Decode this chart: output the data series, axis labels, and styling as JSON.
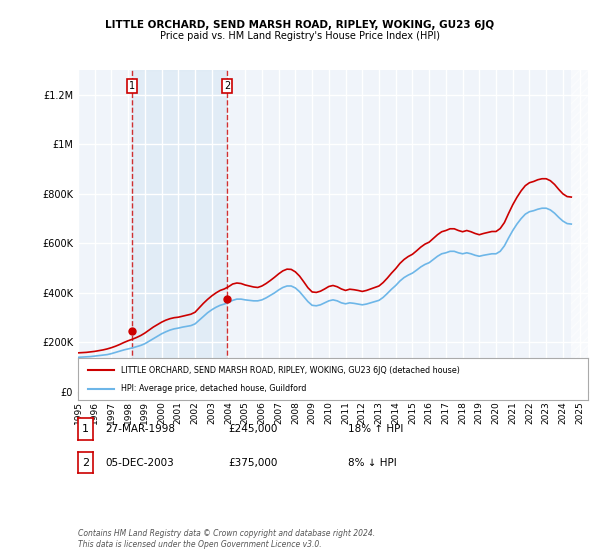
{
  "title": "LITTLE ORCHARD, SEND MARSH ROAD, RIPLEY, WOKING, GU23 6JQ",
  "subtitle": "Price paid vs. HM Land Registry's House Price Index (HPI)",
  "xlim": [
    1995,
    2025.5
  ],
  "ylim": [
    0,
    1300000
  ],
  "yticks": [
    0,
    200000,
    400000,
    600000,
    800000,
    1000000,
    1200000
  ],
  "ytick_labels": [
    "£0",
    "£200K",
    "£400K",
    "£600K",
    "£800K",
    "£1M",
    "£1.2M"
  ],
  "xtick_years": [
    1995,
    1996,
    1997,
    1998,
    1999,
    2000,
    2001,
    2002,
    2003,
    2004,
    2005,
    2006,
    2007,
    2008,
    2009,
    2010,
    2011,
    2012,
    2013,
    2014,
    2015,
    2016,
    2017,
    2018,
    2019,
    2020,
    2021,
    2022,
    2023,
    2024,
    2025
  ],
  "background_color": "#ffffff",
  "plot_bg_color": "#f0f4fa",
  "grid_color": "#ffffff",
  "sale1_x": 1998.24,
  "sale1_y": 245000,
  "sale2_x": 2003.92,
  "sale2_y": 375000,
  "sale_color": "#cc0000",
  "hpi_color": "#6db6e8",
  "legend_house_label": "LITTLE ORCHARD, SEND MARSH ROAD, RIPLEY, WOKING, GU23 6JQ (detached house)",
  "legend_hpi_label": "HPI: Average price, detached house, Guildford",
  "table_rows": [
    {
      "num": "1",
      "date": "27-MAR-1998",
      "price": "£245,000",
      "hpi": "18% ↑ HPI"
    },
    {
      "num": "2",
      "date": "05-DEC-2003",
      "price": "£375,000",
      "hpi": "8% ↓ HPI"
    }
  ],
  "footer": "Contains HM Land Registry data © Crown copyright and database right 2024.\nThis data is licensed under the Open Government Licence v3.0.",
  "hpi_data_x": [
    1995.0,
    1995.25,
    1995.5,
    1995.75,
    1996.0,
    1996.25,
    1996.5,
    1996.75,
    1997.0,
    1997.25,
    1997.5,
    1997.75,
    1998.0,
    1998.25,
    1998.5,
    1998.75,
    1999.0,
    1999.25,
    1999.5,
    1999.75,
    2000.0,
    2000.25,
    2000.5,
    2000.75,
    2001.0,
    2001.25,
    2001.5,
    2001.75,
    2002.0,
    2002.25,
    2002.5,
    2002.75,
    2003.0,
    2003.25,
    2003.5,
    2003.75,
    2004.0,
    2004.25,
    2004.5,
    2004.75,
    2005.0,
    2005.25,
    2005.5,
    2005.75,
    2006.0,
    2006.25,
    2006.5,
    2006.75,
    2007.0,
    2007.25,
    2007.5,
    2007.75,
    2008.0,
    2008.25,
    2008.5,
    2008.75,
    2009.0,
    2009.25,
    2009.5,
    2009.75,
    2010.0,
    2010.25,
    2010.5,
    2010.75,
    2011.0,
    2011.25,
    2011.5,
    2011.75,
    2012.0,
    2012.25,
    2012.5,
    2012.75,
    2013.0,
    2013.25,
    2013.5,
    2013.75,
    2014.0,
    2014.25,
    2014.5,
    2014.75,
    2015.0,
    2015.25,
    2015.5,
    2015.75,
    2016.0,
    2016.25,
    2016.5,
    2016.75,
    2017.0,
    2017.25,
    2017.5,
    2017.75,
    2018.0,
    2018.25,
    2018.5,
    2018.75,
    2019.0,
    2019.25,
    2019.5,
    2019.75,
    2020.0,
    2020.25,
    2020.5,
    2020.75,
    2021.0,
    2021.25,
    2021.5,
    2021.75,
    2022.0,
    2022.25,
    2022.5,
    2022.75,
    2023.0,
    2023.25,
    2023.5,
    2023.75,
    2024.0,
    2024.25,
    2024.5
  ],
  "hpi_data_y": [
    140000,
    141000,
    142000,
    143000,
    145000,
    147000,
    149000,
    151000,
    155000,
    160000,
    165000,
    170000,
    174000,
    178000,
    183000,
    188000,
    195000,
    205000,
    215000,
    225000,
    235000,
    243000,
    250000,
    255000,
    258000,
    262000,
    265000,
    268000,
    275000,
    290000,
    305000,
    320000,
    332000,
    342000,
    350000,
    355000,
    362000,
    370000,
    375000,
    375000,
    372000,
    370000,
    368000,
    368000,
    372000,
    380000,
    390000,
    400000,
    412000,
    422000,
    428000,
    428000,
    420000,
    405000,
    385000,
    365000,
    350000,
    348000,
    352000,
    360000,
    368000,
    372000,
    368000,
    360000,
    356000,
    360000,
    358000,
    355000,
    352000,
    355000,
    360000,
    365000,
    370000,
    382000,
    398000,
    415000,
    430000,
    448000,
    462000,
    472000,
    480000,
    492000,
    505000,
    515000,
    522000,
    535000,
    548000,
    558000,
    562000,
    568000,
    568000,
    562000,
    558000,
    562000,
    558000,
    552000,
    548000,
    552000,
    555000,
    558000,
    558000,
    568000,
    590000,
    622000,
    652000,
    678000,
    700000,
    718000,
    728000,
    732000,
    738000,
    742000,
    742000,
    735000,
    722000,
    705000,
    690000,
    680000,
    678000
  ],
  "house_data_x": [
    1995.0,
    1995.25,
    1995.5,
    1995.75,
    1996.0,
    1996.25,
    1996.5,
    1996.75,
    1997.0,
    1997.25,
    1997.5,
    1997.75,
    1998.0,
    1998.25,
    1998.5,
    1998.75,
    1999.0,
    1999.25,
    1999.5,
    1999.75,
    2000.0,
    2000.25,
    2000.5,
    2000.75,
    2001.0,
    2001.25,
    2001.5,
    2001.75,
    2002.0,
    2002.25,
    2002.5,
    2002.75,
    2003.0,
    2003.25,
    2003.5,
    2003.75,
    2004.0,
    2004.25,
    2004.5,
    2004.75,
    2005.0,
    2005.25,
    2005.5,
    2005.75,
    2006.0,
    2006.25,
    2006.5,
    2006.75,
    2007.0,
    2007.25,
    2007.5,
    2007.75,
    2008.0,
    2008.25,
    2008.5,
    2008.75,
    2009.0,
    2009.25,
    2009.5,
    2009.75,
    2010.0,
    2010.25,
    2010.5,
    2010.75,
    2011.0,
    2011.25,
    2011.5,
    2011.75,
    2012.0,
    2012.25,
    2012.5,
    2012.75,
    2013.0,
    2013.25,
    2013.5,
    2013.75,
    2014.0,
    2014.25,
    2014.5,
    2014.75,
    2015.0,
    2015.25,
    2015.5,
    2015.75,
    2016.0,
    2016.25,
    2016.5,
    2016.75,
    2017.0,
    2017.25,
    2017.5,
    2017.75,
    2018.0,
    2018.25,
    2018.5,
    2018.75,
    2019.0,
    2019.25,
    2019.5,
    2019.75,
    2020.0,
    2020.25,
    2020.5,
    2020.75,
    2021.0,
    2021.25,
    2021.5,
    2021.75,
    2022.0,
    2022.25,
    2022.5,
    2022.75,
    2023.0,
    2023.25,
    2023.5,
    2023.75,
    2024.0,
    2024.25,
    2024.5
  ],
  "house_data_y": [
    158000,
    159000,
    160000,
    162000,
    164000,
    167000,
    170000,
    174000,
    179000,
    185000,
    192000,
    200000,
    207000,
    213000,
    220000,
    228000,
    238000,
    250000,
    262000,
    272000,
    282000,
    290000,
    296000,
    300000,
    302000,
    306000,
    310000,
    314000,
    322000,
    340000,
    358000,
    374000,
    388000,
    400000,
    410000,
    416000,
    425000,
    436000,
    440000,
    438000,
    432000,
    428000,
    424000,
    422000,
    428000,
    438000,
    450000,
    463000,
    477000,
    489000,
    496000,
    495000,
    485000,
    468000,
    445000,
    421000,
    404000,
    402000,
    407000,
    416000,
    426000,
    430000,
    425000,
    416000,
    410000,
    415000,
    413000,
    410000,
    406000,
    410000,
    416000,
    422000,
    428000,
    442000,
    460000,
    480000,
    498000,
    519000,
    535000,
    547000,
    556000,
    570000,
    585000,
    597000,
    605000,
    620000,
    635000,
    647000,
    652000,
    659000,
    659000,
    652000,
    647000,
    652000,
    647000,
    640000,
    635000,
    640000,
    644000,
    648000,
    648000,
    660000,
    684000,
    721000,
    756000,
    786000,
    812000,
    833000,
    845000,
    850000,
    857000,
    861000,
    861000,
    853000,
    838000,
    818000,
    800000,
    789000,
    787000
  ]
}
